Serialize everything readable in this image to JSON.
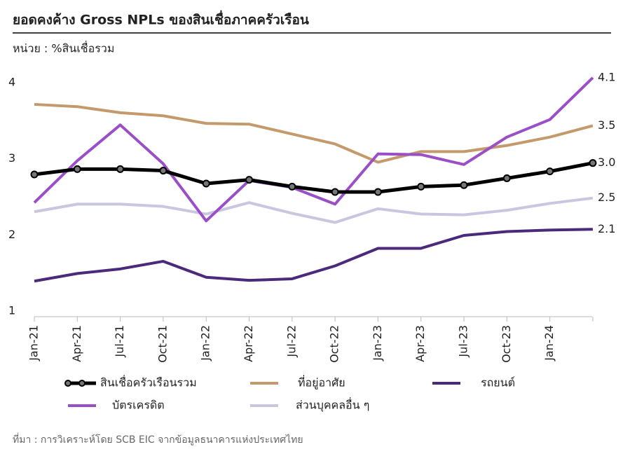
{
  "chart_data": {
    "type": "line",
    "title": "ยอดคงค้าง Gross NPLs ของสินเชื่อภาคครัวเรือน",
    "subtitle": "หน่วย : %สินเชื่อรวม",
    "source": "ที่มา : การวิเคราะห์โดย SCB EIC จากข้อมูลธนาคารแห่งประเทศไทย",
    "categories": [
      "Jan-21",
      "Apr-21",
      "Jul-21",
      "Oct-21",
      "Jan-22",
      "Apr-22",
      "Jul-22",
      "Oct-22",
      "Jan-23",
      "Apr-23",
      "Jul-23",
      "Oct-23",
      "Jan-24",
      null
    ],
    "ylim": [
      1,
      4.2
    ],
    "yticks": [
      1,
      2,
      3,
      4
    ],
    "grid": false,
    "series": [
      {
        "name": "สินเชื่อครัวเรือนรวม",
        "color": "#000000",
        "markers": true,
        "values": [
          2.83,
          2.9,
          2.9,
          2.88,
          2.71,
          2.76,
          2.67,
          2.6,
          2.6,
          2.67,
          2.69,
          2.78,
          2.87,
          2.98
        ],
        "value_labels": [
          null,
          null,
          null,
          null,
          null,
          null,
          null,
          null,
          null,
          null,
          null,
          null,
          null,
          "3.0"
        ]
      },
      {
        "name": "ที่อยู่อาศัย",
        "color": "#c49a6c",
        "values": [
          3.75,
          3.72,
          3.64,
          3.6,
          3.5,
          3.49,
          3.36,
          3.23,
          2.99,
          3.13,
          3.13,
          3.21,
          3.32,
          3.47
        ],
        "value_labels": [
          null,
          null,
          null,
          null,
          null,
          null,
          null,
          null,
          null,
          null,
          null,
          null,
          null,
          "3.5"
        ]
      },
      {
        "name": "รถยนต์",
        "color": "#4b2a7b",
        "values": [
          1.43,
          1.53,
          1.59,
          1.69,
          1.48,
          1.44,
          1.46,
          1.63,
          1.86,
          1.86,
          2.03,
          2.08,
          2.1,
          2.11
        ],
        "value_labels": [
          null,
          null,
          null,
          null,
          null,
          null,
          null,
          null,
          null,
          null,
          null,
          null,
          null,
          "2.1"
        ]
      },
      {
        "name": "บัตรเครดิต",
        "color": "#9b4fc7",
        "values": [
          2.46,
          3.01,
          3.48,
          2.97,
          2.22,
          2.75,
          2.66,
          2.44,
          3.1,
          3.09,
          2.96,
          3.32,
          3.55,
          4.1
        ],
        "value_labels": [
          null,
          null,
          null,
          null,
          null,
          null,
          null,
          null,
          null,
          null,
          null,
          null,
          null,
          "4.1"
        ]
      },
      {
        "name": "ส่วนบุคคลอื่น ๆ",
        "color": "#c9c6e0",
        "values": [
          2.34,
          2.44,
          2.44,
          2.41,
          2.31,
          2.46,
          2.32,
          2.2,
          2.38,
          2.31,
          2.3,
          2.36,
          2.45,
          2.52
        ],
        "value_labels": [
          null,
          null,
          null,
          null,
          null,
          null,
          null,
          null,
          null,
          null,
          null,
          null,
          null,
          "2.5"
        ]
      }
    ]
  }
}
